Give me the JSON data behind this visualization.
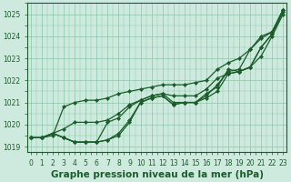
{
  "xlabel": "Graphe pression niveau de la mer (hPa)",
  "x_ticks": [
    0,
    1,
    2,
    3,
    4,
    5,
    6,
    7,
    8,
    9,
    10,
    11,
    12,
    13,
    14,
    15,
    16,
    17,
    18,
    19,
    20,
    21,
    22,
    23
  ],
  "xlim": [
    -0.3,
    23.3
  ],
  "ylim": [
    1018.75,
    1025.5
  ],
  "yticks": [
    1019,
    1020,
    1021,
    1022,
    1023,
    1024,
    1025
  ],
  "background_color": "#ceeade",
  "grid_color": "#88c8a8",
  "line_color": "#1a5c2a",
  "series": [
    [
      1019.4,
      1019.4,
      1019.6,
      1019.4,
      1019.2,
      1019.2,
      1019.2,
      1019.3,
      1019.5,
      1020.1,
      1021.0,
      1021.2,
      1021.3,
      1020.9,
      1021.0,
      1021.0,
      1021.2,
      1021.5,
      1022.3,
      1022.4,
      1022.6,
      1023.5,
      1024.1,
      1025.2
    ],
    [
      1019.4,
      1019.4,
      1019.6,
      1019.4,
      1019.2,
      1019.2,
      1019.2,
      1019.3,
      1019.6,
      1020.2,
      1021.0,
      1021.2,
      1021.3,
      1020.9,
      1021.0,
      1021.0,
      1021.3,
      1021.8,
      1022.4,
      1022.5,
      1023.4,
      1024.0,
      1024.2,
      1025.2
    ],
    [
      1019.4,
      1019.4,
      1019.6,
      1019.4,
      1019.2,
      1019.2,
      1019.2,
      1020.1,
      1020.3,
      1020.8,
      1021.1,
      1021.3,
      1021.4,
      1021.0,
      1021.0,
      1021.0,
      1021.4,
      1021.7,
      1022.5,
      1022.4,
      1022.6,
      1023.5,
      1024.1,
      1025.1
    ],
    [
      1019.4,
      1019.4,
      1019.6,
      1019.8,
      1020.1,
      1020.1,
      1020.1,
      1020.2,
      1020.5,
      1020.9,
      1021.1,
      1021.3,
      1021.4,
      1021.3,
      1021.3,
      1021.3,
      1021.6,
      1022.1,
      1022.3,
      1022.4,
      1022.6,
      1023.1,
      1024.0,
      1025.0
    ],
    [
      1019.4,
      1019.4,
      1019.5,
      1020.8,
      1021.0,
      1021.1,
      1021.1,
      1021.2,
      1021.4,
      1021.5,
      1021.6,
      1021.7,
      1021.8,
      1021.8,
      1021.8,
      1021.9,
      1022.0,
      1022.5,
      1022.8,
      1023.0,
      1023.4,
      1023.9,
      1024.2,
      1025.2
    ]
  ],
  "marker": "D",
  "markersize": 2.2,
  "linewidth": 0.9,
  "xlabel_fontsize": 7.5,
  "tick_fontsize": 5.5
}
